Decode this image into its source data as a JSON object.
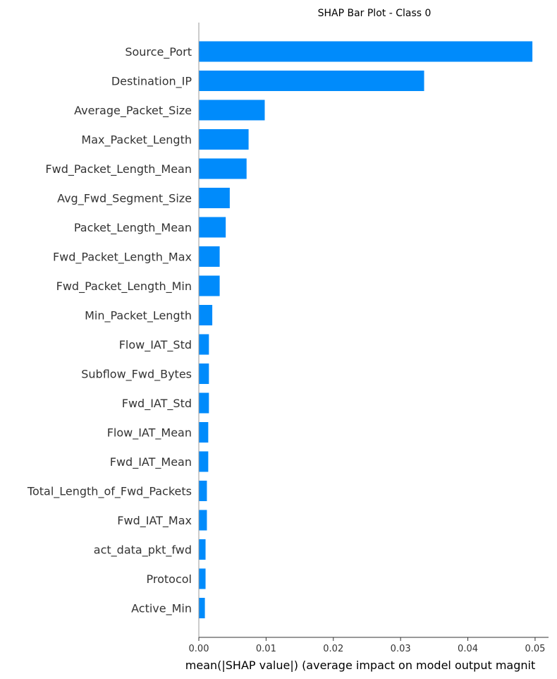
{
  "chart_data": {
    "type": "bar",
    "orientation": "horizontal",
    "title": "SHAP Bar Plot - Class 0",
    "xlabel": "mean(|SHAP value|) (average impact on model output magnit",
    "ylabel": "",
    "xlim": [
      0,
      0.052
    ],
    "xticks": [
      0.0,
      0.01,
      0.02,
      0.03,
      0.04,
      0.05
    ],
    "xtick_labels": [
      "0.00",
      "0.01",
      "0.02",
      "0.03",
      "0.04",
      "0.05"
    ],
    "grid": false,
    "bar_color": "#008bfb",
    "categories": [
      "Source_Port",
      "Destination_IP",
      "Average_Packet_Size",
      "Max_Packet_Length",
      "Fwd_Packet_Length_Mean",
      "Avg_Fwd_Segment_Size",
      "Packet_Length_Mean",
      "Fwd_Packet_Length_Max",
      "Fwd_Packet_Length_Min",
      "Min_Packet_Length",
      "Flow_IAT_Std",
      "Subflow_Fwd_Bytes",
      "Fwd_IAT_Std",
      "Flow_IAT_Mean",
      "Fwd_IAT_Mean",
      "Total_Length_of_Fwd_Packets",
      "Fwd_IAT_Max",
      "act_data_pkt_fwd",
      "Protocol",
      "Active_Min"
    ],
    "values": [
      0.0496,
      0.0335,
      0.0098,
      0.0074,
      0.0071,
      0.0046,
      0.004,
      0.0031,
      0.0031,
      0.002,
      0.0015,
      0.0015,
      0.0015,
      0.0014,
      0.0014,
      0.0012,
      0.0012,
      0.001,
      0.001,
      0.0009
    ]
  }
}
